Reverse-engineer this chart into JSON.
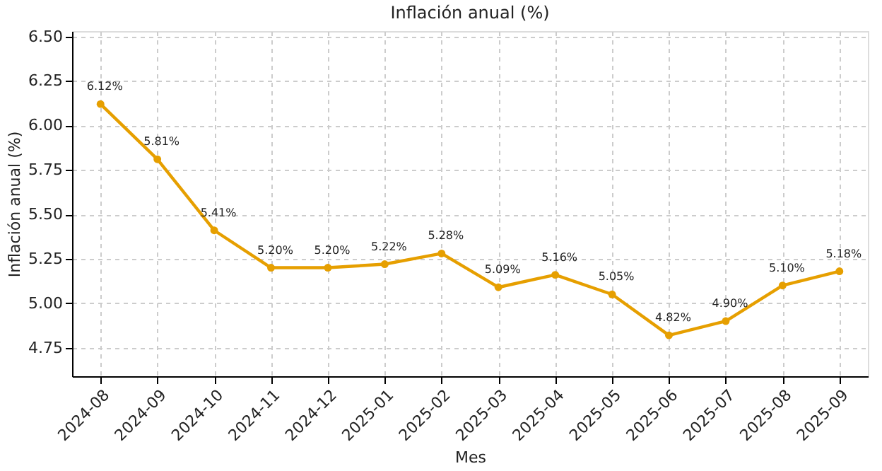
{
  "chart_data": {
    "type": "line",
    "title": "Inflación anual (%)",
    "xlabel": "Mes",
    "ylabel": "Inflación anual (%)",
    "categories": [
      "2024-08",
      "2024-09",
      "2024-10",
      "2024-11",
      "2024-12",
      "2025-01",
      "2025-02",
      "2025-03",
      "2025-04",
      "2025-05",
      "2025-06",
      "2025-07",
      "2025-08",
      "2025-09"
    ],
    "series": [
      {
        "color": "#e69f00",
        "values": [
          6.12,
          5.81,
          5.41,
          5.2,
          5.2,
          5.22,
          5.28,
          5.09,
          5.16,
          5.05,
          4.82,
          4.9,
          5.1,
          5.18
        ],
        "value_labels": [
          "6.12%",
          "5.81%",
          "5.41%",
          "5.20%",
          "5.20%",
          "5.22%",
          "5.28%",
          "5.09%",
          "5.16%",
          "5.05%",
          "4.82%",
          "4.90%",
          "5.10%",
          "5.18%"
        ]
      }
    ],
    "ylim": [
      4.59,
      6.53
    ],
    "yticks": [
      {
        "value": 4.75,
        "label": "4.75"
      },
      {
        "value": 5.0,
        "label": "5.00"
      },
      {
        "value": 5.25,
        "label": "5.25"
      },
      {
        "value": 5.5,
        "label": "5.50"
      },
      {
        "value": 5.75,
        "label": "5.75"
      },
      {
        "value": 6.0,
        "label": "6.00"
      },
      {
        "value": 6.25,
        "label": "6.25"
      },
      {
        "value": 6.5,
        "label": "6.50"
      }
    ],
    "grid": true,
    "marker": "circle",
    "line_style": "solid"
  }
}
